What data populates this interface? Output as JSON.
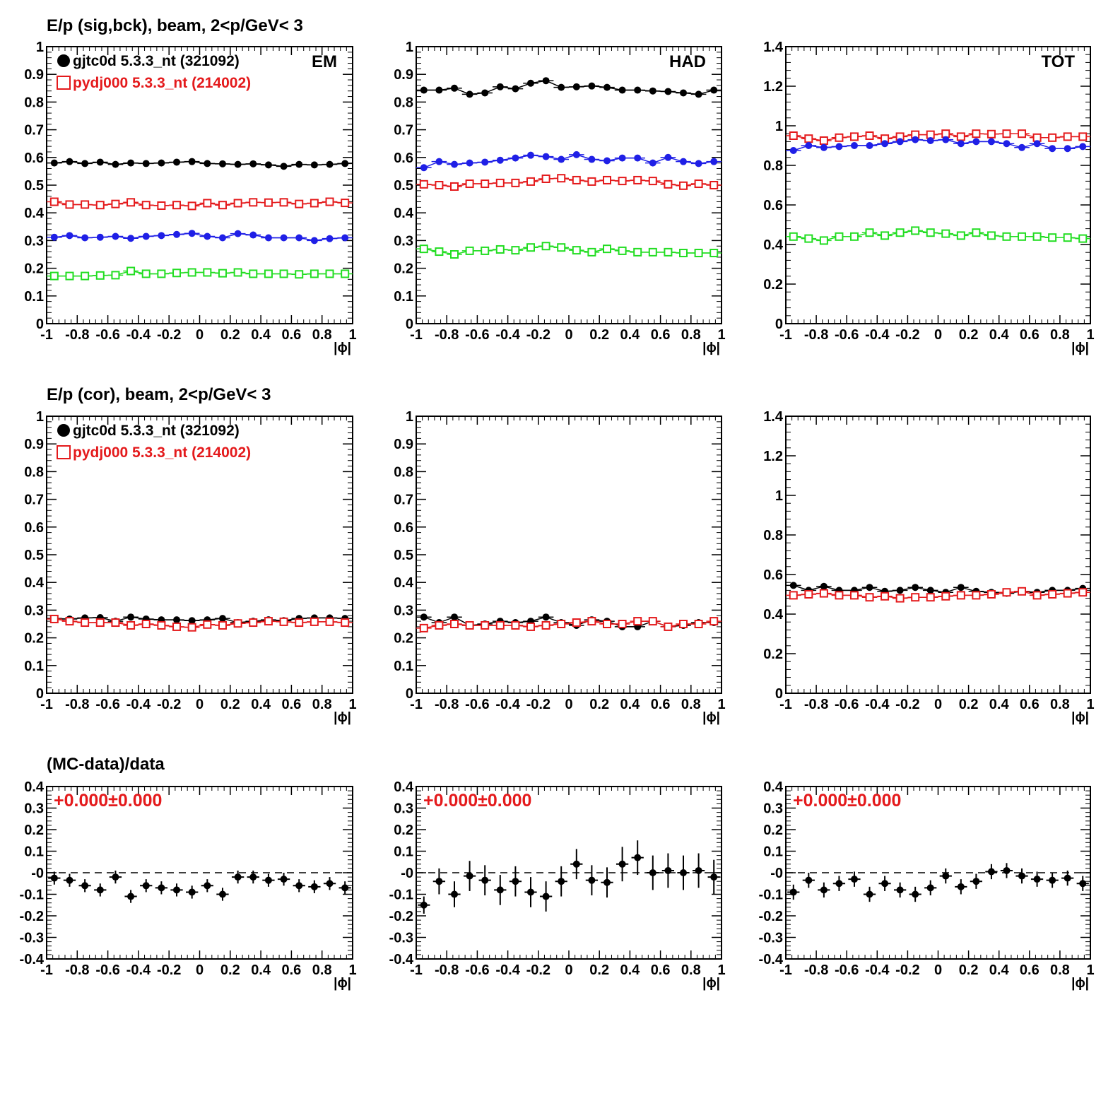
{
  "headers": {
    "row1": "E/p (sig,bck), beam,  2<p/GeV< 3",
    "row2": "E/p (cor), beam,  2<p/GeV< 3",
    "row3": "(MC-data)/data"
  },
  "legend": {
    "data_label": "gjtc0d 5.3.3_nt (321092)",
    "mc_label": "pydj000 5.3.3_nt (214002)"
  },
  "colors": {
    "data": "#000000",
    "mc": "#e41a1c",
    "blue": "#1f1fe6",
    "green": "#22dd22",
    "fit_text": "#e41a1c"
  },
  "chart_data": [
    {
      "id": "p11",
      "type": "scatter",
      "panel_tag": "EM",
      "legend": true,
      "xlabel": "|ϕ|",
      "xlim": [
        -1,
        1
      ],
      "ylim": [
        0,
        1
      ],
      "xticks": [
        "-1",
        "-0.8",
        "-0.6",
        "-0.4",
        "-0.2",
        "0",
        "0.2",
        "0.4",
        "0.6",
        "0.8",
        "1"
      ],
      "yticks": [
        "0",
        "0.1",
        "0.2",
        "0.3",
        "0.4",
        "0.5",
        "0.6",
        "0.7",
        "0.8",
        "0.9",
        "1"
      ],
      "x": [
        -0.95,
        -0.85,
        -0.75,
        -0.65,
        -0.55,
        -0.45,
        -0.35,
        -0.25,
        -0.15,
        -0.05,
        0.05,
        0.15,
        0.25,
        0.35,
        0.45,
        0.55,
        0.65,
        0.75,
        0.85,
        0.95
      ],
      "series": [
        {
          "style": "black-dot",
          "values": [
            0.58,
            0.585,
            0.578,
            0.583,
            0.575,
            0.58,
            0.578,
            0.58,
            0.583,
            0.585,
            0.578,
            0.577,
            0.575,
            0.577,
            0.573,
            0.568,
            0.575,
            0.573,
            0.575,
            0.578
          ]
        },
        {
          "style": "red-square",
          "values": [
            0.44,
            0.43,
            0.43,
            0.428,
            0.432,
            0.438,
            0.428,
            0.426,
            0.428,
            0.425,
            0.435,
            0.428,
            0.435,
            0.438,
            0.437,
            0.438,
            0.432,
            0.435,
            0.44,
            0.436
          ]
        },
        {
          "style": "blue-dot",
          "values": [
            0.312,
            0.318,
            0.31,
            0.312,
            0.315,
            0.308,
            0.315,
            0.318,
            0.322,
            0.326,
            0.315,
            0.31,
            0.325,
            0.32,
            0.31,
            0.31,
            0.31,
            0.3,
            0.307,
            0.31
          ]
        },
        {
          "style": "green-square",
          "values": [
            0.172,
            0.172,
            0.172,
            0.174,
            0.175,
            0.19,
            0.18,
            0.18,
            0.183,
            0.185,
            0.185,
            0.182,
            0.185,
            0.18,
            0.18,
            0.18,
            0.178,
            0.18,
            0.18,
            0.18
          ]
        }
      ]
    },
    {
      "id": "p12",
      "type": "scatter",
      "panel_tag": "HAD",
      "legend": false,
      "xlabel": "|ϕ|",
      "xlim": [
        -1,
        1
      ],
      "ylim": [
        0,
        1
      ],
      "xticks": [
        "-1",
        "-0.8",
        "-0.6",
        "-0.4",
        "-0.2",
        "0",
        "0.2",
        "0.4",
        "0.6",
        "0.8",
        "1"
      ],
      "yticks": [
        "0",
        "0.1",
        "0.2",
        "0.3",
        "0.4",
        "0.5",
        "0.6",
        "0.7",
        "0.8",
        "0.9",
        "1"
      ],
      "x": [
        -0.95,
        -0.85,
        -0.75,
        -0.65,
        -0.55,
        -0.45,
        -0.35,
        -0.25,
        -0.15,
        -0.05,
        0.05,
        0.15,
        0.25,
        0.35,
        0.45,
        0.55,
        0.65,
        0.75,
        0.85,
        0.95
      ],
      "series": [
        {
          "style": "black-dot",
          "values": [
            0.843,
            0.843,
            0.85,
            0.828,
            0.833,
            0.855,
            0.848,
            0.868,
            0.877,
            0.853,
            0.855,
            0.858,
            0.853,
            0.843,
            0.843,
            0.84,
            0.838,
            0.833,
            0.828,
            0.843
          ]
        },
        {
          "style": "red-square",
          "values": [
            0.503,
            0.5,
            0.495,
            0.505,
            0.505,
            0.508,
            0.508,
            0.513,
            0.523,
            0.525,
            0.518,
            0.513,
            0.518,
            0.515,
            0.518,
            0.515,
            0.503,
            0.498,
            0.505,
            0.5
          ]
        },
        {
          "style": "blue-dot",
          "values": [
            0.563,
            0.585,
            0.575,
            0.58,
            0.583,
            0.59,
            0.598,
            0.608,
            0.603,
            0.593,
            0.61,
            0.593,
            0.588,
            0.598,
            0.598,
            0.58,
            0.6,
            0.585,
            0.578,
            0.585
          ]
        },
        {
          "style": "green-square",
          "values": [
            0.27,
            0.26,
            0.25,
            0.263,
            0.263,
            0.268,
            0.265,
            0.275,
            0.28,
            0.275,
            0.265,
            0.258,
            0.27,
            0.263,
            0.258,
            0.258,
            0.258,
            0.255,
            0.255,
            0.255
          ]
        }
      ]
    },
    {
      "id": "p13",
      "type": "scatter",
      "panel_tag": "TOT",
      "legend": false,
      "xlabel": "|ϕ|",
      "xlim": [
        -1,
        1
      ],
      "ylim": [
        0,
        1.4
      ],
      "xticks": [
        "-1",
        "-0.8",
        "-0.6",
        "-0.4",
        "-0.2",
        "0",
        "0.2",
        "0.4",
        "0.6",
        "0.8",
        "1"
      ],
      "yticks": [
        "0",
        "0.2",
        "0.4",
        "0.6",
        "0.8",
        "1",
        "1.2",
        "1.4"
      ],
      "x": [
        -0.95,
        -0.85,
        -0.75,
        -0.65,
        -0.55,
        -0.45,
        -0.35,
        -0.25,
        -0.15,
        -0.05,
        0.05,
        0.15,
        0.25,
        0.35,
        0.45,
        0.55,
        0.65,
        0.75,
        0.85,
        0.95
      ],
      "series": [
        {
          "style": "red-square",
          "values": [
            0.95,
            0.935,
            0.925,
            0.94,
            0.945,
            0.95,
            0.935,
            0.945,
            0.955,
            0.955,
            0.96,
            0.945,
            0.96,
            0.958,
            0.96,
            0.96,
            0.94,
            0.94,
            0.945,
            0.945
          ]
        },
        {
          "style": "blue-dot",
          "values": [
            0.875,
            0.9,
            0.89,
            0.895,
            0.9,
            0.9,
            0.91,
            0.92,
            0.93,
            0.925,
            0.93,
            0.91,
            0.92,
            0.92,
            0.91,
            0.89,
            0.91,
            0.885,
            0.885,
            0.895
          ]
        },
        {
          "style": "green-square",
          "values": [
            0.44,
            0.43,
            0.42,
            0.44,
            0.44,
            0.46,
            0.445,
            0.46,
            0.47,
            0.46,
            0.455,
            0.445,
            0.46,
            0.445,
            0.44,
            0.44,
            0.44,
            0.435,
            0.435,
            0.43
          ]
        }
      ]
    },
    {
      "id": "p21",
      "type": "scatter",
      "panel_tag": "",
      "legend": true,
      "xlabel": "|ϕ|",
      "xlim": [
        -1,
        1
      ],
      "ylim": [
        0,
        1
      ],
      "xticks": [
        "-1",
        "-0.8",
        "-0.6",
        "-0.4",
        "-0.2",
        "0",
        "0.2",
        "0.4",
        "0.6",
        "0.8",
        "1"
      ],
      "yticks": [
        "0",
        "0.1",
        "0.2",
        "0.3",
        "0.4",
        "0.5",
        "0.6",
        "0.7",
        "0.8",
        "0.9",
        "1"
      ],
      "x": [
        -0.95,
        -0.85,
        -0.75,
        -0.65,
        -0.55,
        -0.45,
        -0.35,
        -0.25,
        -0.15,
        -0.05,
        0.05,
        0.15,
        0.25,
        0.35,
        0.45,
        0.55,
        0.65,
        0.75,
        0.85,
        0.95
      ],
      "series": [
        {
          "style": "black-dot",
          "values": [
            0.27,
            0.268,
            0.272,
            0.273,
            0.26,
            0.275,
            0.268,
            0.265,
            0.265,
            0.262,
            0.265,
            0.27,
            0.255,
            0.26,
            0.265,
            0.262,
            0.27,
            0.272,
            0.272,
            0.27
          ]
        },
        {
          "style": "red-square",
          "values": [
            0.268,
            0.26,
            0.255,
            0.255,
            0.255,
            0.245,
            0.25,
            0.245,
            0.24,
            0.238,
            0.248,
            0.245,
            0.252,
            0.255,
            0.26,
            0.258,
            0.255,
            0.258,
            0.258,
            0.255
          ]
        }
      ]
    },
    {
      "id": "p22",
      "type": "scatter",
      "panel_tag": "",
      "legend": false,
      "xlabel": "|ϕ|",
      "xlim": [
        -1,
        1
      ],
      "ylim": [
        0,
        1
      ],
      "xticks": [
        "-1",
        "-0.8",
        "-0.6",
        "-0.4",
        "-0.2",
        "0",
        "0.2",
        "0.4",
        "0.6",
        "0.8",
        "1"
      ],
      "yticks": [
        "0",
        "0.1",
        "0.2",
        "0.3",
        "0.4",
        "0.5",
        "0.6",
        "0.7",
        "0.8",
        "0.9",
        "1"
      ],
      "x": [
        -0.95,
        -0.85,
        -0.75,
        -0.65,
        -0.55,
        -0.45,
        -0.35,
        -0.25,
        -0.15,
        -0.05,
        0.05,
        0.15,
        0.25,
        0.35,
        0.45,
        0.55,
        0.65,
        0.75,
        0.85,
        0.95
      ],
      "series": [
        {
          "style": "black-dot",
          "values": [
            0.275,
            0.255,
            0.275,
            0.245,
            0.25,
            0.26,
            0.255,
            0.26,
            0.275,
            0.255,
            0.245,
            0.265,
            0.26,
            0.24,
            0.24,
            0.26,
            0.24,
            0.245,
            0.255,
            0.255
          ]
        },
        {
          "style": "red-square",
          "values": [
            0.235,
            0.245,
            0.25,
            0.245,
            0.245,
            0.245,
            0.245,
            0.24,
            0.245,
            0.25,
            0.255,
            0.26,
            0.25,
            0.25,
            0.26,
            0.26,
            0.24,
            0.25,
            0.25,
            0.26
          ]
        }
      ]
    },
    {
      "id": "p23",
      "type": "scatter",
      "panel_tag": "",
      "legend": false,
      "xlabel": "|ϕ|",
      "xlim": [
        -1,
        1
      ],
      "ylim": [
        0,
        1.4
      ],
      "xticks": [
        "-1",
        "-0.8",
        "-0.6",
        "-0.4",
        "-0.2",
        "0",
        "0.2",
        "0.4",
        "0.6",
        "0.8",
        "1"
      ],
      "yticks": [
        "0",
        "0.2",
        "0.4",
        "0.6",
        "0.8",
        "1",
        "1.2",
        "1.4"
      ],
      "x": [
        -0.95,
        -0.85,
        -0.75,
        -0.65,
        -0.55,
        -0.45,
        -0.35,
        -0.25,
        -0.15,
        -0.05,
        0.05,
        0.15,
        0.25,
        0.35,
        0.45,
        0.55,
        0.65,
        0.75,
        0.85,
        0.95
      ],
      "series": [
        {
          "style": "black-dot",
          "values": [
            0.545,
            0.52,
            0.54,
            0.52,
            0.52,
            0.535,
            0.515,
            0.52,
            0.535,
            0.52,
            0.51,
            0.535,
            0.515,
            0.51,
            0.505,
            0.515,
            0.51,
            0.52,
            0.52,
            0.53
          ]
        },
        {
          "style": "red-square",
          "values": [
            0.495,
            0.5,
            0.505,
            0.495,
            0.495,
            0.485,
            0.49,
            0.48,
            0.485,
            0.485,
            0.49,
            0.495,
            0.495,
            0.5,
            0.51,
            0.515,
            0.495,
            0.5,
            0.505,
            0.51
          ]
        }
      ]
    },
    {
      "id": "p31",
      "type": "scatter",
      "panel_tag": "",
      "legend": false,
      "fit_text": "+0.000±0.000",
      "dashed_zero": true,
      "xlabel": "|ϕ|",
      "xlim": [
        -1,
        1
      ],
      "ylim": [
        -0.4,
        0.4
      ],
      "xticks": [
        "-1",
        "-0.8",
        "-0.6",
        "-0.4",
        "-0.2",
        "0",
        "0.2",
        "0.4",
        "0.6",
        "0.8",
        "1"
      ],
      "yticks": [
        "-0.4",
        "-0.3",
        "-0.2",
        "-0.1",
        "-0",
        "0.1",
        "0.2",
        "0.3",
        "0.4"
      ],
      "x": [
        -0.95,
        -0.85,
        -0.75,
        -0.65,
        -0.55,
        -0.45,
        -0.35,
        -0.25,
        -0.15,
        -0.05,
        0.05,
        0.15,
        0.25,
        0.35,
        0.45,
        0.55,
        0.65,
        0.75,
        0.85,
        0.95
      ],
      "series": [
        {
          "style": "black-err",
          "values": [
            -0.025,
            -0.035,
            -0.06,
            -0.08,
            -0.02,
            -0.11,
            -0.06,
            -0.07,
            -0.08,
            -0.09,
            -0.06,
            -0.1,
            -0.02,
            -0.02,
            -0.035,
            -0.03,
            -0.06,
            -0.065,
            -0.05,
            -0.07
          ],
          "errors": [
            0.03,
            0.03,
            0.03,
            0.03,
            0.03,
            0.03,
            0.03,
            0.03,
            0.03,
            0.03,
            0.03,
            0.03,
            0.03,
            0.03,
            0.03,
            0.03,
            0.03,
            0.03,
            0.03,
            0.03
          ]
        }
      ]
    },
    {
      "id": "p32",
      "type": "scatter",
      "panel_tag": "",
      "legend": false,
      "fit_text": "+0.000±0.000",
      "dashed_zero": true,
      "xlabel": "|ϕ|",
      "xlim": [
        -1,
        1
      ],
      "ylim": [
        -0.4,
        0.4
      ],
      "xticks": [
        "-1",
        "-0.8",
        "-0.6",
        "-0.4",
        "-0.2",
        "0",
        "0.2",
        "0.4",
        "0.6",
        "0.8",
        "1"
      ],
      "yticks": [
        "-0.4",
        "-0.3",
        "-0.2",
        "-0.1",
        "-0",
        "0.1",
        "0.2",
        "0.3",
        "0.4"
      ],
      "x": [
        -0.95,
        -0.85,
        -0.75,
        -0.65,
        -0.55,
        -0.45,
        -0.35,
        -0.25,
        -0.15,
        -0.05,
        0.05,
        0.15,
        0.25,
        0.35,
        0.45,
        0.55,
        0.65,
        0.75,
        0.85,
        0.95
      ],
      "series": [
        {
          "style": "black-err",
          "values": [
            -0.15,
            -0.04,
            -0.1,
            -0.015,
            -0.035,
            -0.08,
            -0.04,
            -0.09,
            -0.11,
            -0.04,
            0.04,
            -0.035,
            -0.045,
            0.04,
            0.07,
            0.0,
            0.01,
            0.0,
            0.01,
            -0.02
          ],
          "errors": [
            0.04,
            0.06,
            0.06,
            0.07,
            0.07,
            0.07,
            0.07,
            0.07,
            0.07,
            0.07,
            0.07,
            0.07,
            0.07,
            0.08,
            0.08,
            0.08,
            0.08,
            0.08,
            0.08,
            0.08
          ]
        }
      ]
    },
    {
      "id": "p33",
      "type": "scatter",
      "panel_tag": "",
      "legend": false,
      "fit_text": "+0.000±0.000",
      "dashed_zero": true,
      "xlabel": "|ϕ|",
      "xlim": [
        -1,
        1
      ],
      "ylim": [
        -0.4,
        0.4
      ],
      "xticks": [
        "-1",
        "-0.8",
        "-0.6",
        "-0.4",
        "-0.2",
        "0",
        "0.2",
        "0.4",
        "0.6",
        "0.8",
        "1"
      ],
      "yticks": [
        "-0.4",
        "-0.3",
        "-0.2",
        "-0.1",
        "-0",
        "0.1",
        "0.2",
        "0.3",
        "0.4"
      ],
      "x": [
        -0.95,
        -0.85,
        -0.75,
        -0.65,
        -0.55,
        -0.45,
        -0.35,
        -0.25,
        -0.15,
        -0.05,
        0.05,
        0.15,
        0.25,
        0.35,
        0.45,
        0.55,
        0.65,
        0.75,
        0.85,
        0.95
      ],
      "series": [
        {
          "style": "black-err",
          "values": [
            -0.09,
            -0.035,
            -0.08,
            -0.05,
            -0.03,
            -0.1,
            -0.05,
            -0.08,
            -0.1,
            -0.07,
            -0.015,
            -0.065,
            -0.04,
            0.005,
            0.01,
            -0.015,
            -0.03,
            -0.035,
            -0.025,
            -0.05
          ],
          "errors": [
            0.035,
            0.035,
            0.035,
            0.035,
            0.035,
            0.035,
            0.035,
            0.035,
            0.035,
            0.035,
            0.035,
            0.035,
            0.035,
            0.035,
            0.035,
            0.035,
            0.035,
            0.035,
            0.035,
            0.035
          ]
        }
      ]
    }
  ]
}
